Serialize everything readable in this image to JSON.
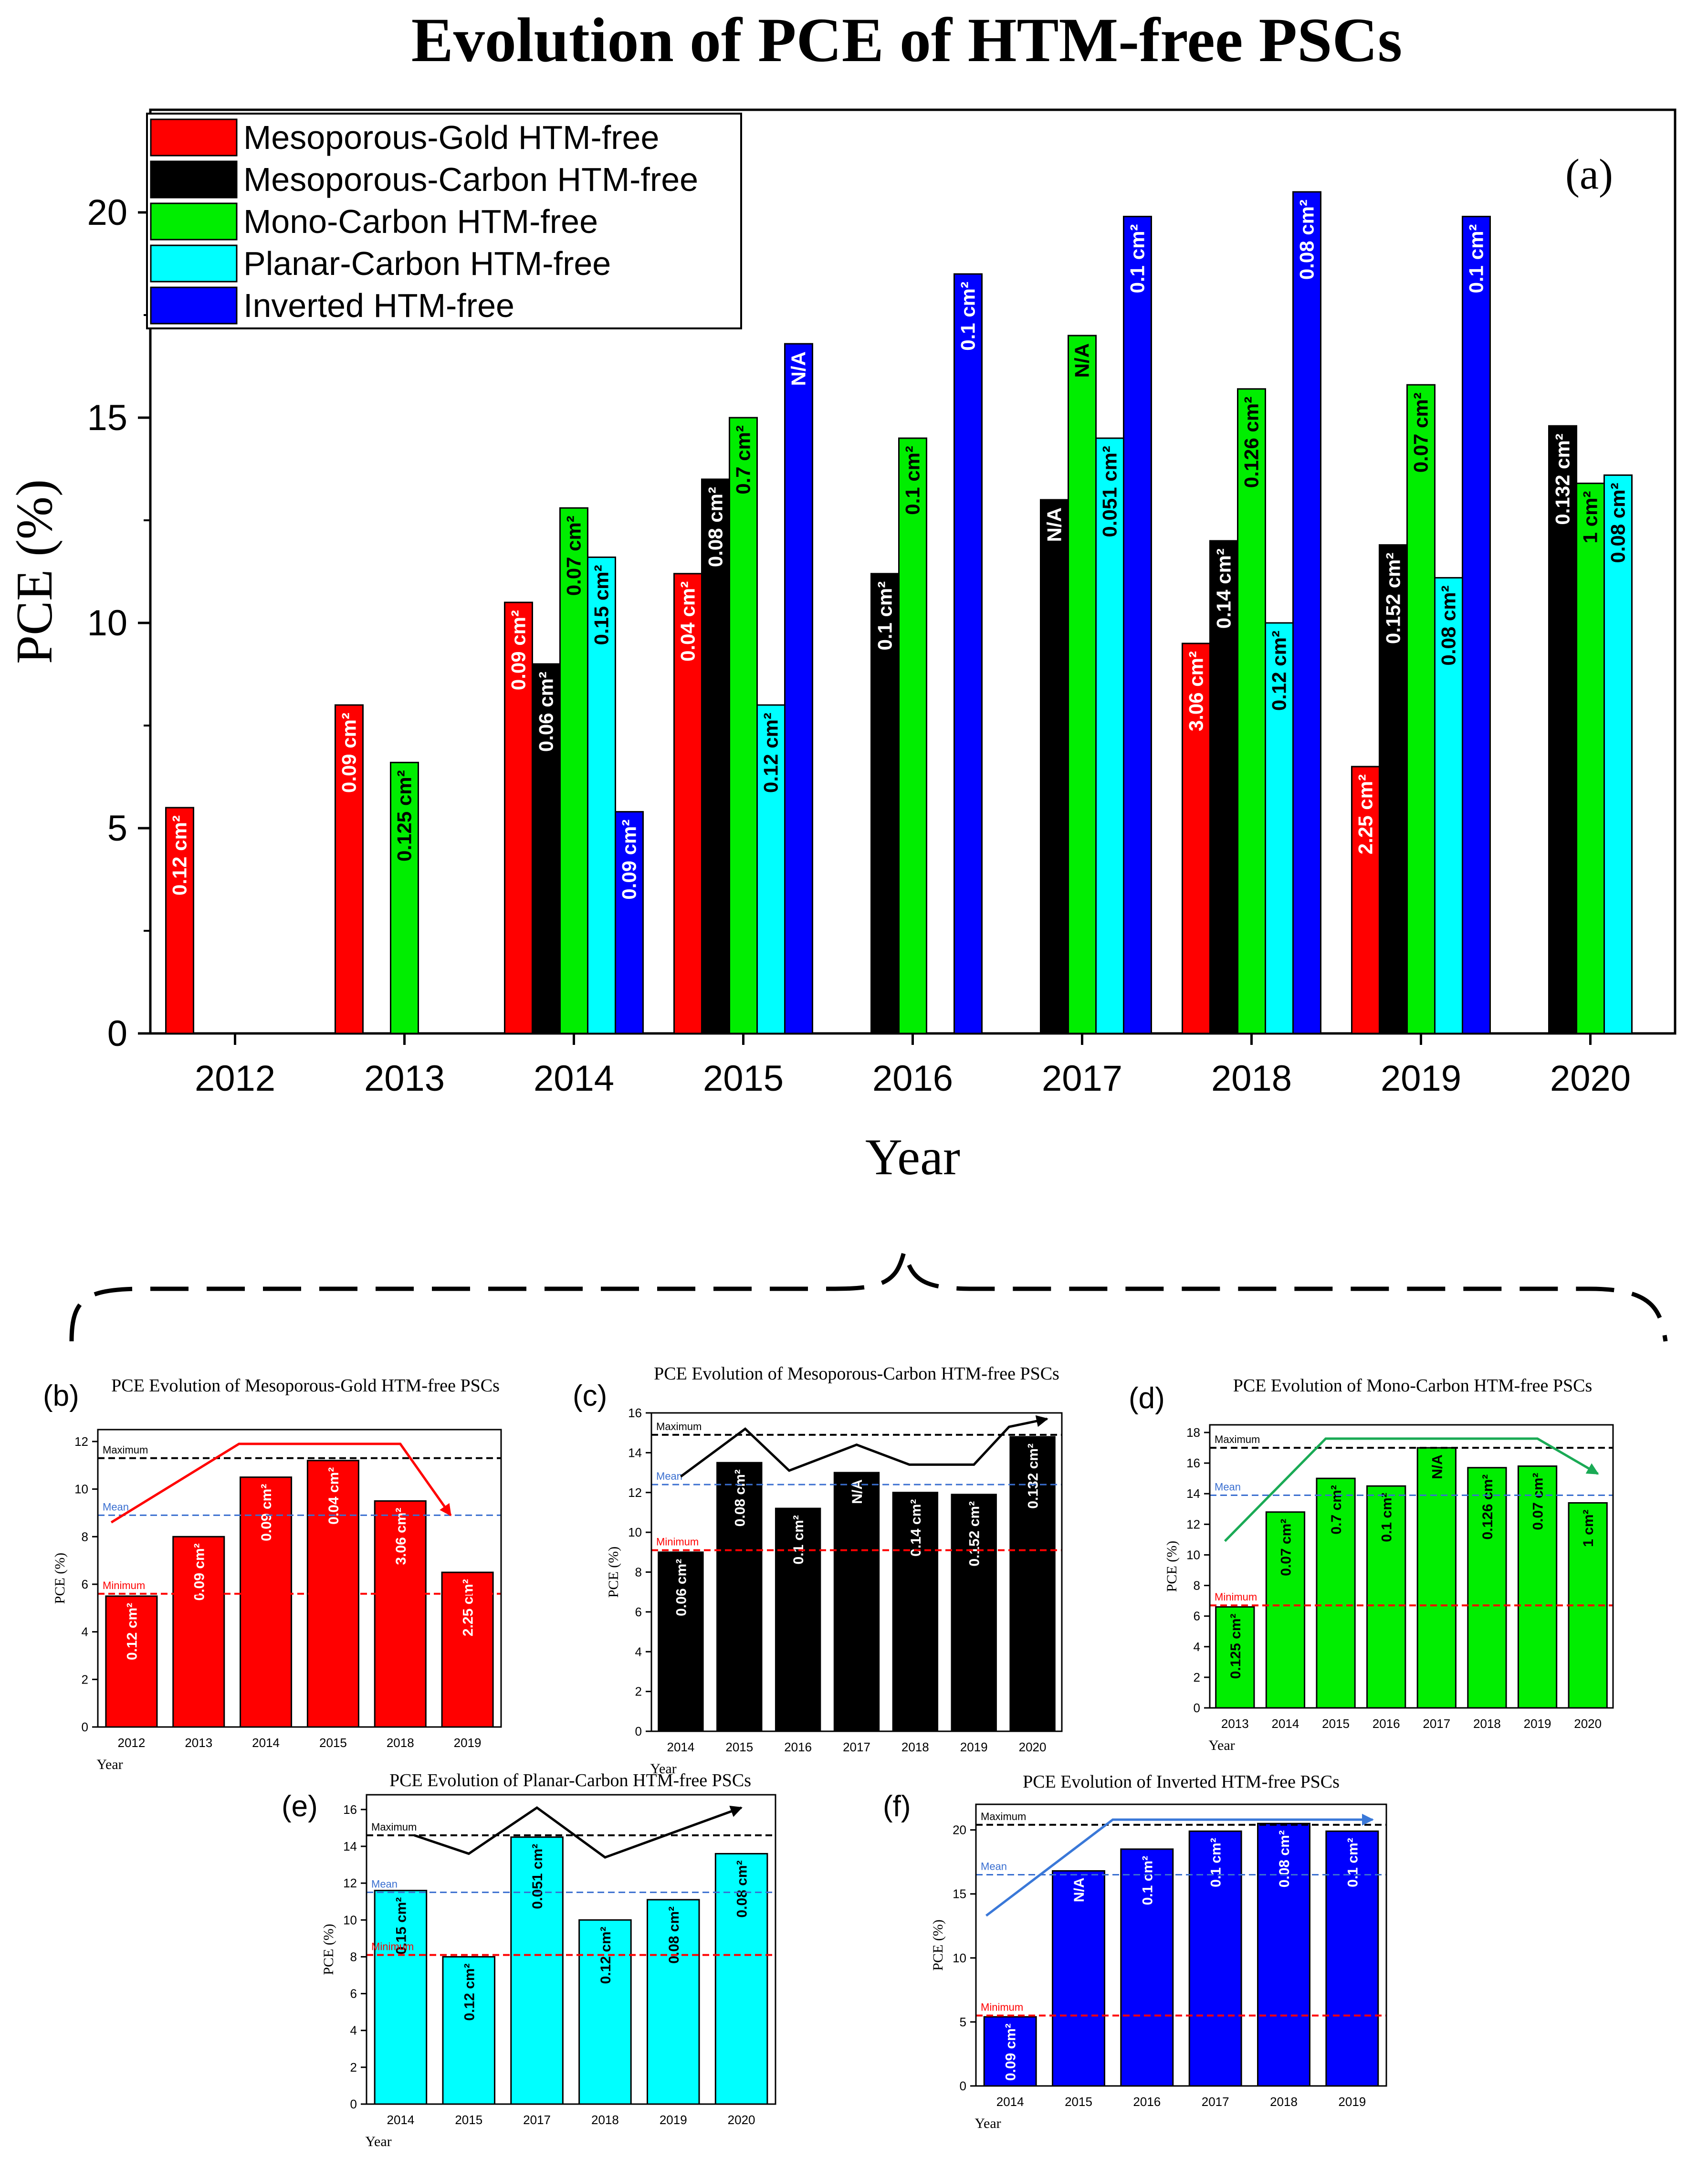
{
  "page_title": "Evolution of PCE of HTM-free PSCs",
  "chart_data": [
    {
      "id": "a",
      "panel_label": "(a)",
      "type": "bar",
      "title": "Evolution of PCE of HTM-free PSCs",
      "xlabel": "Year",
      "ylabel": "PCE (%)",
      "ylim": [
        0,
        22.5
      ],
      "yticks": [
        0,
        5,
        10,
        15,
        20
      ],
      "categories": [
        "2012",
        "2013",
        "2014",
        "2015",
        "2016",
        "2017",
        "2018",
        "2019",
        "2020"
      ],
      "legend_position": "top-left",
      "series": [
        {
          "name": "Mesoporous-Gold HTM-free",
          "color": "#ff0000",
          "label_color": "#ffffff",
          "values": [
            5.5,
            8.0,
            10.5,
            11.2,
            null,
            null,
            9.5,
            6.5,
            null
          ],
          "labels": [
            "0.12 cm²",
            "0.09 cm²",
            "0.09 cm²",
            "0.04 cm²",
            null,
            null,
            "3.06 cm²",
            "2.25 cm²",
            null
          ]
        },
        {
          "name": "Mesoporous-Carbon HTM-free",
          "color": "#000000",
          "label_color": "#ffffff",
          "values": [
            null,
            null,
            9.0,
            13.5,
            11.2,
            13.0,
            12.0,
            11.9,
            14.8
          ],
          "labels": [
            null,
            null,
            "0.06 cm²",
            "0.08 cm²",
            "0.1 cm²",
            "N/A",
            "0.14 cm²",
            "0.152 cm²",
            "0.132 cm²"
          ]
        },
        {
          "name": "Mono-Carbon HTM-free",
          "color": "#00ee00",
          "label_color": "#000000",
          "values": [
            null,
            6.6,
            12.8,
            15.0,
            14.5,
            17.0,
            15.7,
            15.8,
            13.4
          ],
          "labels": [
            null,
            "0.125 cm²",
            "0.07 cm²",
            "0.7 cm²",
            "0.1 cm²",
            "N/A",
            "0.126 cm²",
            "0.07 cm²",
            "1 cm²"
          ]
        },
        {
          "name": "Planar-Carbon HTM-free",
          "color": "#00ffff",
          "label_color": "#000000",
          "values": [
            null,
            null,
            11.6,
            8.0,
            null,
            14.5,
            10.0,
            11.1,
            13.6
          ],
          "labels": [
            null,
            null,
            "0.15 cm²",
            "0.12 cm²",
            null,
            "0.051 cm²",
            "0.12 cm²",
            "0.08 cm²",
            "0.08 cm²"
          ]
        },
        {
          "name": "Inverted HTM-free",
          "color": "#0000ff",
          "label_color": "#ffffff",
          "values": [
            null,
            null,
            5.4,
            16.8,
            18.5,
            19.9,
            20.5,
            19.9,
            null
          ],
          "labels": [
            null,
            null,
            "0.09 cm²",
            "N/A",
            "0.1 cm²",
            "0.1 cm²",
            "0.08 cm²",
            "0.1 cm²",
            null
          ]
        }
      ]
    },
    {
      "id": "b",
      "panel_label": "(b)",
      "type": "bar",
      "title": "PCE Evolution of Mesoporous-Gold HTM-free PSCs",
      "xlabel": "Year",
      "ylabel": "PCE (%)",
      "ylim": [
        0,
        12.5
      ],
      "yticks": [
        0,
        2,
        4,
        6,
        8,
        10,
        12
      ],
      "color": "#ff0000",
      "label_color": "#ffffff",
      "categories": [
        "2012",
        "2013",
        "2014",
        "2015",
        "2018",
        "2019"
      ],
      "values": [
        5.5,
        8.0,
        10.5,
        11.2,
        9.5,
        6.5
      ],
      "labels": [
        "0.12 cm²",
        "0.09 cm²",
        "0.09 cm²",
        "0.04 cm²",
        "3.06 cm²",
        "2.25 cm²"
      ],
      "reference_lines": {
        "maximum": 11.3,
        "mean": 8.9,
        "minimum": 5.6
      },
      "reference_labels": {
        "maximum": "Maximum",
        "mean": "Mean",
        "minimum": "Minimum"
      },
      "trend_color": "#ff0000",
      "trend": [
        [
          -0.3,
          8.6
        ],
        [
          1.6,
          11.9
        ],
        [
          4.0,
          11.9
        ],
        [
          4.75,
          8.9
        ]
      ]
    },
    {
      "id": "c",
      "panel_label": "(c)",
      "type": "bar",
      "title": "PCE Evolution of Mesoporous-Carbon HTM-free PSCs",
      "xlabel": "Year",
      "ylabel": "PCE (%)",
      "ylim": [
        0,
        16
      ],
      "yticks": [
        0,
        2,
        4,
        6,
        8,
        10,
        12,
        14,
        16
      ],
      "color": "#000000",
      "label_color": "#ffffff",
      "categories": [
        "2014",
        "2015",
        "2016",
        "2017",
        "2018",
        "2019",
        "2020"
      ],
      "values": [
        9.0,
        13.5,
        11.2,
        13.0,
        12.0,
        11.9,
        14.8
      ],
      "labels": [
        "0.06 cm²",
        "0.08 cm²",
        "0.1 cm²",
        "N/A",
        "0.14 cm²",
        "0.152 cm²",
        "0.132 cm²"
      ],
      "reference_lines": {
        "maximum": 14.9,
        "mean": 12.4,
        "minimum": 9.1
      },
      "reference_labels": {
        "maximum": "Maximum",
        "mean": "Mean",
        "minimum": "Minimum"
      },
      "trend_color": "#000000",
      "trend": [
        [
          0.0,
          12.8
        ],
        [
          1.1,
          15.2
        ],
        [
          1.85,
          13.1
        ],
        [
          3.0,
          14.4
        ],
        [
          3.9,
          13.4
        ],
        [
          5.0,
          13.4
        ],
        [
          5.6,
          15.3
        ],
        [
          6.25,
          15.7
        ]
      ]
    },
    {
      "id": "d",
      "panel_label": "(d)",
      "type": "bar",
      "title": "PCE Evolution of Mono-Carbon HTM-free PSCs",
      "xlabel": "Year",
      "ylabel": "PCE (%)",
      "ylim": [
        0,
        18.5
      ],
      "yticks": [
        0,
        2,
        4,
        6,
        8,
        10,
        12,
        14,
        16,
        18
      ],
      "color": "#00ee00",
      "label_color": "#000000",
      "categories": [
        "2013",
        "2014",
        "2015",
        "2016",
        "2017",
        "2018",
        "2019",
        "2020"
      ],
      "values": [
        6.6,
        12.8,
        15.0,
        14.5,
        17.0,
        15.7,
        15.8,
        13.4
      ],
      "labels": [
        "0.125 cm²",
        "0.07 cm²",
        "0.7 cm²",
        "0.1 cm²",
        "N/A",
        "0.126 cm²",
        "0.07 cm²",
        "1 cm²"
      ],
      "reference_lines": {
        "maximum": 17.0,
        "mean": 13.9,
        "minimum": 6.7
      },
      "reference_labels": {
        "maximum": "Maximum",
        "mean": "Mean",
        "minimum": "Minimum"
      },
      "trend_color": "#1aaa55",
      "trend": [
        [
          -0.2,
          10.9
        ],
        [
          1.8,
          17.6
        ],
        [
          6.0,
          17.6
        ],
        [
          7.2,
          15.3
        ]
      ]
    },
    {
      "id": "e",
      "panel_label": "(e)",
      "type": "bar",
      "title": "PCE Evolution of Planar-Carbon HTM-free PSCs",
      "xlabel": "Year",
      "ylabel": "PCE (%)",
      "ylim": [
        0,
        16.8
      ],
      "yticks": [
        0,
        2,
        4,
        6,
        8,
        10,
        12,
        14,
        16
      ],
      "color": "#00ffff",
      "label_color": "#000000",
      "categories": [
        "2014",
        "2015",
        "2017",
        "2018",
        "2019",
        "2020"
      ],
      "values": [
        11.6,
        8.0,
        14.5,
        10.0,
        11.1,
        13.6
      ],
      "labels": [
        "0.15 cm²",
        "0.12 cm²",
        "0.051 cm²",
        "0.12 cm²",
        "0.08 cm²",
        "0.08 cm²"
      ],
      "reference_lines": {
        "maximum": 14.6,
        "mean": 11.5,
        "minimum": 8.1
      },
      "reference_labels": {
        "maximum": "Maximum",
        "mean": "Mean",
        "minimum": "Minimum"
      },
      "trend_color": "#000000",
      "trend": [
        [
          0.2,
          14.6
        ],
        [
          1.0,
          13.6
        ],
        [
          2.0,
          16.1
        ],
        [
          3.0,
          13.4
        ],
        [
          5.0,
          16.1
        ]
      ]
    },
    {
      "id": "f",
      "panel_label": "(f)",
      "type": "bar",
      "title": "PCE Evolution of Inverted HTM-free PSCs",
      "xlabel": "Year",
      "ylabel": "PCE (%)",
      "ylim": [
        0,
        22
      ],
      "yticks": [
        0,
        5,
        10,
        15,
        20
      ],
      "color": "#0000ff",
      "label_color": "#ffffff",
      "categories": [
        "2014",
        "2015",
        "2016",
        "2017",
        "2018",
        "2019"
      ],
      "values": [
        5.4,
        16.8,
        18.5,
        19.9,
        20.5,
        19.9
      ],
      "labels": [
        "0.09 cm²",
        "N/A",
        "0.1 cm²",
        "0.1 cm²",
        "0.08 cm²",
        "0.1 cm²"
      ],
      "reference_lines": {
        "maximum": 20.4,
        "mean": 16.5,
        "minimum": 5.5
      },
      "reference_labels": {
        "maximum": "Maximum",
        "mean": "Mean",
        "minimum": "Minimum"
      },
      "trend_color": "#3a78d8",
      "trend": [
        [
          -0.35,
          13.3
        ],
        [
          1.5,
          20.8
        ],
        [
          5.3,
          20.8
        ]
      ]
    }
  ]
}
